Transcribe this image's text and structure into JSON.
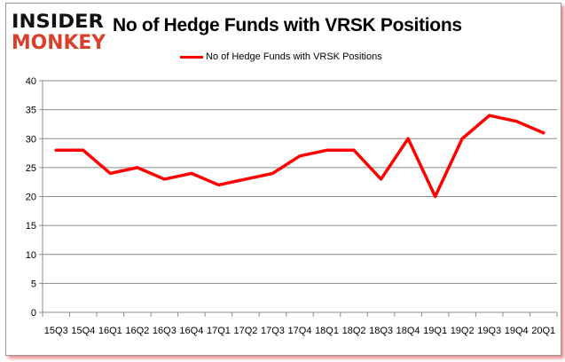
{
  "logo": {
    "line1": "INSIDER",
    "line2": "MONKEY"
  },
  "chart_data": {
    "type": "line",
    "title": "No of Hedge Funds with VRSK Positions",
    "xlabel": "",
    "ylabel": "",
    "categories": [
      "15Q3",
      "15Q4",
      "16Q1",
      "16Q2",
      "16Q3",
      "16Q4",
      "17Q1",
      "17Q2",
      "17Q3",
      "17Q4",
      "18Q1",
      "18Q2",
      "18Q3",
      "18Q4",
      "19Q1",
      "19Q2",
      "19Q3",
      "19Q4",
      "20Q1"
    ],
    "series": [
      {
        "name": "No of Hedge Funds with VRSK Positions",
        "values": [
          28,
          28,
          24,
          25,
          23,
          24,
          22,
          23,
          24,
          27,
          28,
          28,
          23,
          30,
          20,
          30,
          34,
          33,
          31
        ],
        "color": "#ff0000"
      }
    ],
    "ylim": [
      0,
      40
    ],
    "yticks": [
      0,
      5,
      10,
      15,
      20,
      25,
      30,
      35,
      40
    ],
    "grid": true,
    "legend": "top-center"
  }
}
